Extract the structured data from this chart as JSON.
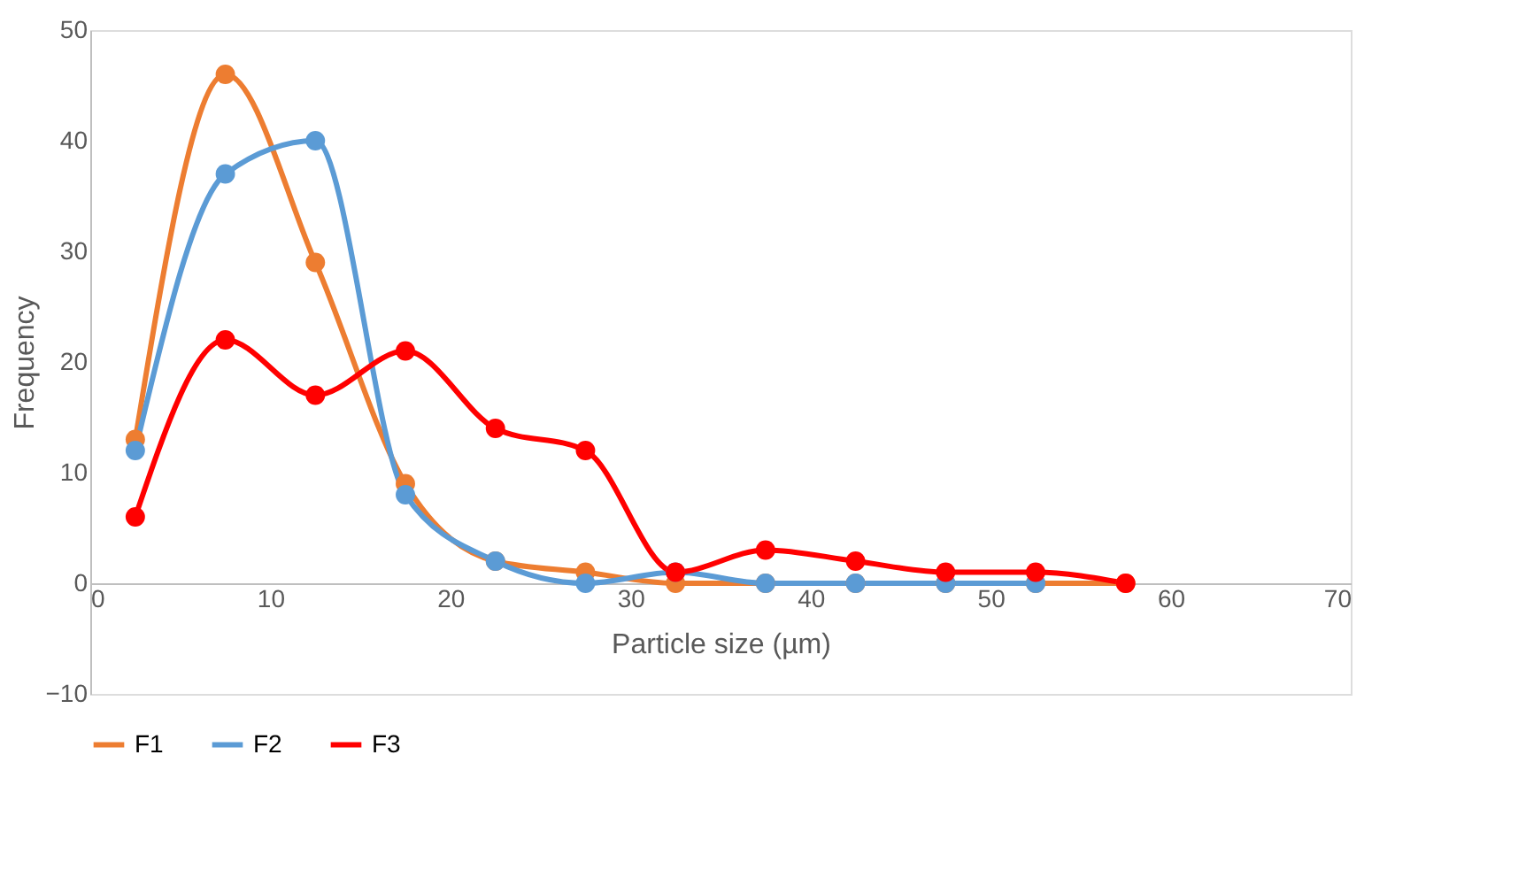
{
  "chart_data": {
    "type": "line",
    "xlabel": "Particle size (µm)",
    "ylabel": "Frequency",
    "xlim": [
      0,
      70
    ],
    "xticks": [
      0,
      10,
      20,
      30,
      40,
      50,
      60,
      70
    ],
    "ylim": [
      -10,
      50
    ],
    "yticks": [
      -10,
      0,
      10,
      20,
      30,
      40,
      50
    ],
    "grid": false,
    "legend": "bottom",
    "marker": "circle",
    "line_style": "solid",
    "series": [
      {
        "name": "F1",
        "color": "#ed7d31",
        "x": [
          2.5,
          7.5,
          12.5,
          17.5,
          22.5,
          27.5,
          32.5,
          37.5,
          42.5,
          47.5,
          52.5,
          57.5
        ],
        "values": [
          13,
          46,
          29,
          9,
          2,
          1,
          0,
          0,
          0,
          0,
          0,
          0
        ]
      },
      {
        "name": "F2",
        "color": "#5b9bd5",
        "x": [
          2.5,
          7.5,
          12.5,
          17.5,
          22.5,
          27.5,
          32.5,
          37.5,
          42.5,
          47.5,
          52.5
        ],
        "values": [
          12,
          37,
          40,
          8,
          2,
          0,
          1,
          0,
          0,
          0,
          0
        ]
      },
      {
        "name": "F3",
        "color": "#ff0000",
        "x": [
          2.5,
          7.5,
          12.5,
          17.5,
          22.5,
          27.5,
          32.5,
          37.5,
          42.5,
          47.5,
          52.5,
          57.5
        ],
        "values": [
          6,
          22,
          17,
          21,
          14,
          12,
          1,
          3,
          2,
          1,
          1,
          0
        ]
      }
    ]
  }
}
